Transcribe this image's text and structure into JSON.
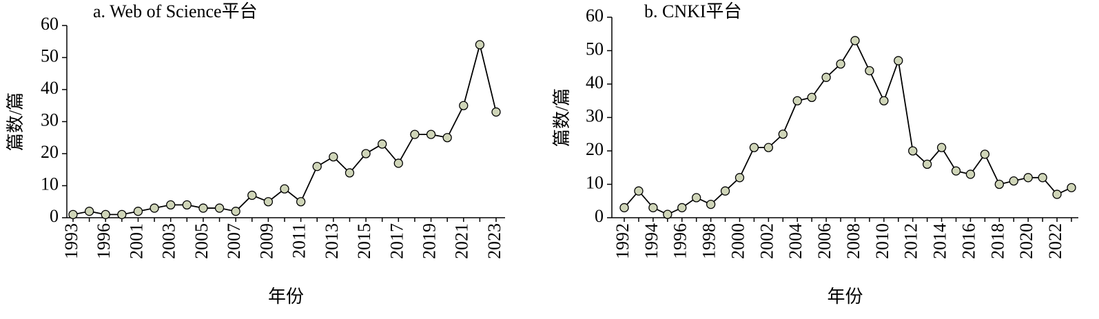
{
  "chart_data": [
    {
      "type": "line",
      "title": "a. Web of Science平台",
      "x_label": "年份",
      "y_label": "篇数/篇",
      "categories": [
        "1993",
        null,
        "1996",
        null,
        "2001",
        null,
        "2003",
        null,
        "2005",
        null,
        "2007",
        null,
        "2009",
        null,
        "2011",
        null,
        "2013",
        null,
        "2015",
        null,
        "2017",
        null,
        "2019",
        null,
        "2021",
        null,
        "2023"
      ],
      "values": [
        1,
        2,
        1,
        1,
        2,
        3,
        4,
        4,
        3,
        3,
        2,
        7,
        5,
        9,
        5,
        16,
        19,
        14,
        20,
        23,
        17,
        26,
        26,
        25,
        35,
        54,
        33
      ],
      "color": "#000000",
      "marker_color": "#cfd5b8",
      "ylim": [
        0,
        60
      ],
      "yticks": [
        0,
        10,
        20,
        30,
        40,
        50,
        60
      ]
    },
    {
      "type": "line",
      "title": "b. CNKI平台",
      "x_label": "年份",
      "y_label": "篇数/篇",
      "categories": [
        "1992",
        null,
        "1994",
        null,
        "1996",
        null,
        "1998",
        null,
        "2000",
        null,
        "2002",
        null,
        "2004",
        null,
        "2006",
        null,
        "2008",
        null,
        "2010",
        null,
        "2012",
        null,
        "2014",
        null,
        "2016",
        null,
        "2018",
        null,
        "2020",
        null,
        "2022",
        null
      ],
      "values": [
        3,
        8,
        3,
        1,
        3,
        6,
        4,
        8,
        12,
        21,
        21,
        25,
        35,
        36,
        42,
        46,
        53,
        44,
        35,
        47,
        20,
        16,
        21,
        14,
        13,
        19,
        10,
        11,
        12,
        12,
        7,
        9
      ],
      "color": "#000000",
      "marker_color": "#cfd5b8",
      "ylim": [
        0,
        60
      ],
      "yticks": [
        0,
        10,
        20,
        30,
        40,
        50,
        60
      ]
    }
  ]
}
